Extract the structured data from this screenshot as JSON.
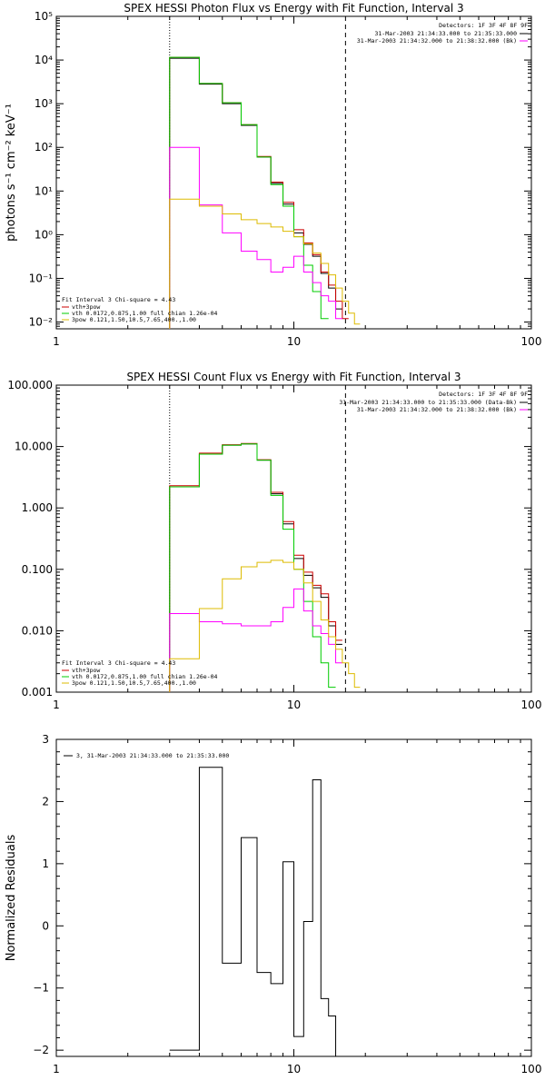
{
  "chart_data": [
    {
      "type": "line",
      "title": "SPEX HESSI Photon Flux vs Energy with Fit Function, Interval 3",
      "ylabel": "photons s⁻¹ cm⁻² keV⁻¹",
      "xscale": "log",
      "yscale": "log",
      "xlim": [
        1,
        100
      ],
      "ylim": [
        0.007,
        100000
      ],
      "xticks": [
        "1",
        "10",
        "100"
      ],
      "yticks": [
        "10⁻²",
        "10⁻¹",
        "10⁰",
        "10¹",
        "10²",
        "10³",
        "10⁴",
        "10⁵"
      ],
      "vlines": [
        {
          "x": 3.0,
          "style": "dotted"
        },
        {
          "x": 16.5,
          "style": "dashed"
        }
      ],
      "legend_header": "Detectors: 1F 3F 4F 8F 9F",
      "legend": [
        {
          "text": "31-Mar-2003 21:34:33.000 to 21:35:33.000",
          "color": "#000000"
        },
        {
          "text": "31-Mar-2003 21:34:32.000 to 21:38:32.000 (Bk)",
          "color": "#ff00ff"
        }
      ],
      "fit_info": {
        "header": "Fit Interval 3   Chi-square = 4.43",
        "rows": [
          {
            "text": "vth+3pow",
            "color": "#cc0000"
          },
          {
            "text": "vth 0.0172,0.875,1.00  full chian 1.26e-04",
            "color": "#00cc00"
          },
          {
            "text": "3pow 0.121,1.50,10.5,7.65,400.,1.00",
            "color": "#ddbb00"
          }
        ]
      },
      "edges": [
        3.0,
        4.0,
        5.0,
        6.0,
        7.0,
        8.0,
        9.0,
        10.0,
        11.0,
        12.0,
        13.0,
        14.0,
        15.0,
        16.0,
        17.0,
        18.0,
        19.0,
        20.0
      ],
      "series": [
        {
          "color": "#000000",
          "values": [
            11000,
            2800,
            1000,
            320,
            60,
            15,
            5,
            1.1,
            0.6,
            0.32,
            0.13,
            0.06,
            0.02,
            null,
            null,
            null,
            null
          ]
        },
        {
          "color": "#cc0000",
          "values": [
            11500,
            2900,
            1050,
            330,
            62,
            16,
            5.5,
            1.3,
            0.65,
            0.35,
            0.14,
            0.07,
            0.03,
            0.012,
            null,
            null,
            null
          ]
        },
        {
          "color": "#00cc00",
          "values": [
            11500,
            2900,
            1050,
            330,
            60,
            14,
            4.5,
            0.9,
            0.2,
            0.05,
            0.012,
            null,
            null,
            null,
            null,
            null,
            null
          ]
        },
        {
          "color": "#ff00ff",
          "values": [
            100,
            4.8,
            1.1,
            0.42,
            0.27,
            0.14,
            0.18,
            0.32,
            0.14,
            0.08,
            0.04,
            0.03,
            0.012,
            null,
            null,
            null,
            null
          ]
        },
        {
          "color": "#ddbb00",
          "values": [
            6.5,
            4.5,
            3.0,
            2.2,
            1.8,
            1.5,
            1.2,
            0.9,
            0.62,
            0.38,
            0.22,
            0.12,
            0.06,
            0.03,
            0.016,
            0.009,
            null
          ]
        }
      ]
    },
    {
      "type": "line",
      "title": "SPEX HESSI Count Flux vs Energy with Fit Function, Interval 3",
      "xscale": "log",
      "yscale": "log",
      "xlim": [
        1,
        100
      ],
      "ylim": [
        0.001,
        100
      ],
      "xticks": [
        "1",
        "10",
        "100"
      ],
      "yticks": [
        "0.001",
        "0.010",
        "0.100",
        "1.000",
        "10.000",
        "100.000"
      ],
      "vlines": [
        {
          "x": 3.0,
          "style": "dotted"
        },
        {
          "x": 16.5,
          "style": "dashed"
        }
      ],
      "legend_header": "Detectors: 1F 3F 4F 8F 9F",
      "legend": [
        {
          "text": "31-Mar-2003 21:34:33.000 to 21:35:33.000 (Data-Bk)",
          "color": "#000000"
        },
        {
          "text": "31-Mar-2003 21:34:32.000 to 21:38:32.000 (Bk)",
          "color": "#ff00ff"
        }
      ],
      "fit_info": {
        "header": "Fit Interval 3   Chi-square = 4.43",
        "rows": [
          {
            "text": "vth+3pow",
            "color": "#cc0000"
          },
          {
            "text": "vth 0.0172,0.875,1.00  full chian 1.26e-04",
            "color": "#00cc00"
          },
          {
            "text": "3pow 0.121,1.50,10.5,7.65,400.,1.00",
            "color": "#ddbb00"
          }
        ]
      },
      "edges": [
        3.0,
        4.0,
        5.0,
        6.0,
        7.0,
        8.0,
        9.0,
        10.0,
        11.0,
        12.0,
        13.0,
        14.0,
        15.0,
        16.0,
        17.0,
        18.0,
        19.0,
        20.0
      ],
      "series": [
        {
          "color": "#000000",
          "values": [
            2.2,
            7.5,
            10.5,
            11.0,
            6.0,
            1.7,
            0.55,
            0.15,
            0.08,
            0.05,
            0.035,
            0.012,
            0.006,
            null,
            null,
            null,
            null
          ]
        },
        {
          "color": "#cc0000",
          "values": [
            2.3,
            7.8,
            10.7,
            11.2,
            6.1,
            1.8,
            0.6,
            0.17,
            0.09,
            0.055,
            0.04,
            0.014,
            0.007,
            null,
            null,
            null,
            null
          ]
        },
        {
          "color": "#00cc00",
          "values": [
            2.2,
            7.5,
            10.5,
            11.0,
            6.0,
            1.6,
            0.45,
            0.1,
            0.03,
            0.008,
            0.003,
            0.0012,
            null,
            null,
            null,
            null,
            null
          ]
        },
        {
          "color": "#ff00ff",
          "values": [
            0.019,
            0.014,
            0.013,
            0.012,
            0.012,
            0.014,
            0.024,
            0.048,
            0.021,
            0.012,
            0.009,
            0.006,
            0.003,
            null,
            null,
            null,
            null
          ]
        },
        {
          "color": "#ddbb00",
          "values": [
            0.0035,
            0.023,
            0.07,
            0.11,
            0.13,
            0.14,
            0.13,
            0.1,
            0.06,
            0.03,
            0.015,
            0.008,
            0.005,
            0.003,
            0.002,
            0.0012,
            null
          ]
        }
      ]
    },
    {
      "type": "line",
      "ylabel": "Normalized Residuals",
      "xscale": "log",
      "yscale": "linear",
      "xlim": [
        1,
        100
      ],
      "ylim": [
        -2.1,
        3.0
      ],
      "xticks": [
        "1",
        "10",
        "100"
      ],
      "yticks": [
        "−2",
        "−1",
        "0",
        "1",
        "2",
        "3"
      ],
      "legend": [
        {
          "text": "3, 31-Mar-2003 21:34:33.000 to 21:35:33.000",
          "color": "#000000"
        }
      ],
      "edges": [
        3.0,
        4.0,
        5.0,
        6.0,
        7.0,
        8.0,
        9.0,
        10.0,
        11.0,
        12.0,
        13.0,
        14.0,
        15.0,
        16.0
      ],
      "series": [
        {
          "color": "#000000",
          "values": [
            -2.0,
            2.55,
            -0.6,
            1.42,
            -0.75,
            -0.93,
            1.03,
            -1.78,
            0.07,
            2.35,
            -1.17,
            -1.45,
            -2.1
          ]
        }
      ]
    }
  ]
}
